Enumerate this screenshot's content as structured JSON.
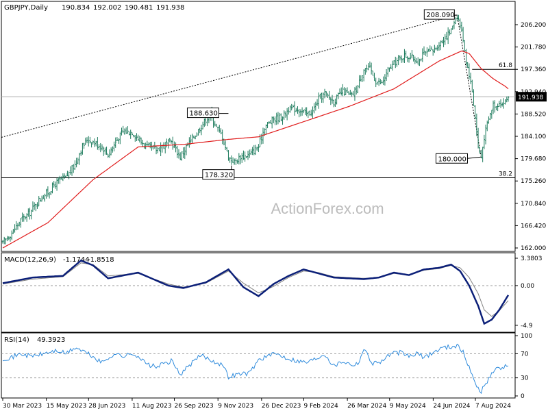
{
  "colors": {
    "background": "#ffffff",
    "candles": "#1b7a5b",
    "ma": "#e01b1b",
    "macd": "#0b1f78",
    "signal": "#808080",
    "rsi": "#2f8bdc",
    "grid_lines": "#000000"
  },
  "watermark": "ActionForex.com",
  "main_header": {
    "symbol": "GBPJPY,Daily",
    "open": "190.834",
    "high": "192.002",
    "low": "190.481",
    "close": "191.938"
  },
  "chart_data": [
    {
      "type": "candlestick",
      "title": "GBPJPY,Daily",
      "y_ticks": [
        "206.200",
        "201.780",
        "197.360",
        "192.940",
        "188.520",
        "184.100",
        "179.680",
        "175.260",
        "170.840",
        "166.420",
        "162.000"
      ],
      "ylim": [
        162.0,
        210.0
      ],
      "x_ticks": [
        "30 Mar 2023",
        "15 May 2023",
        "28 Jun 2023",
        "11 Aug 2023",
        "26 Sep 2023",
        "9 Nov 2023",
        "26 Dec 2023",
        "9 Feb 2024",
        "26 Mar 2024",
        "9 May 2024",
        "24 Jun 2024",
        "7 Aug 2024"
      ],
      "current_price_label": "191.938",
      "annotations": [
        {
          "text": "208.090",
          "value": 208.09
        },
        {
          "text": "188.630",
          "value": 188.63
        },
        {
          "text": "178.320",
          "value": 178.32
        },
        {
          "text": "180.000",
          "value": 180.0
        }
      ],
      "levels": [
        {
          "label": "61.8",
          "value": 197.36
        },
        {
          "label": "38.2",
          "value": 175.9
        },
        {
          "label": "",
          "value": 191.938
        }
      ],
      "series_close_path": [
        [
          0,
          163.0
        ],
        [
          6,
          165.0
        ],
        [
          12,
          167.5
        ],
        [
          18,
          169.0
        ],
        [
          24,
          171.5
        ],
        [
          30,
          173.0
        ],
        [
          36,
          175.0
        ],
        [
          42,
          176.0
        ],
        [
          48,
          178.5
        ],
        [
          52,
          181.5
        ],
        [
          56,
          183.5
        ],
        [
          60,
          183.0
        ],
        [
          66,
          182.0
        ],
        [
          70,
          180.5
        ],
        [
          76,
          183.5
        ],
        [
          80,
          185.0
        ],
        [
          86,
          185.0
        ],
        [
          92,
          183.0
        ],
        [
          96,
          182.0
        ],
        [
          102,
          181.5
        ],
        [
          108,
          182.5
        ],
        [
          112,
          183.0
        ],
        [
          118,
          180.0
        ],
        [
          122,
          182.0
        ],
        [
          128,
          184.5
        ],
        [
          134,
          187.0
        ],
        [
          138,
          188.5
        ],
        [
          142,
          186.0
        ],
        [
          146,
          184.0
        ],
        [
          150,
          180.0
        ],
        [
          154,
          179.0
        ],
        [
          158,
          180.0
        ],
        [
          164,
          180.5
        ],
        [
          170,
          182.0
        ],
        [
          174,
          186.0
        ],
        [
          180,
          187.5
        ],
        [
          186,
          188.0
        ],
        [
          190,
          189.5
        ],
        [
          196,
          189.5
        ],
        [
          202,
          188.5
        ],
        [
          206,
          189.0
        ],
        [
          210,
          191.5
        ],
        [
          214,
          192.5
        ],
        [
          220,
          191.0
        ],
        [
          226,
          193.0
        ],
        [
          232,
          192.0
        ],
        [
          236,
          194.0
        ],
        [
          240,
          197.5
        ],
        [
          244,
          197.5
        ],
        [
          248,
          195.0
        ],
        [
          252,
          194.5
        ],
        [
          256,
          197.0
        ],
        [
          260,
          198.5
        ],
        [
          266,
          200.0
        ],
        [
          270,
          200.0
        ],
        [
          276,
          199.0
        ],
        [
          280,
          200.5
        ],
        [
          286,
          201.0
        ],
        [
          292,
          203.0
        ],
        [
          298,
          205.0
        ],
        [
          300,
          207.0
        ],
        [
          302,
          208.09
        ],
        [
          304,
          206.0
        ],
        [
          306,
          203.5
        ],
        [
          308,
          199.0
        ],
        [
          310,
          196.5
        ],
        [
          312,
          193.0
        ],
        [
          314,
          188.0
        ],
        [
          316,
          182.0
        ],
        [
          318,
          180.0
        ],
        [
          320,
          184.0
        ],
        [
          322,
          186.5
        ],
        [
          324,
          188.5
        ],
        [
          326,
          190.5
        ],
        [
          328,
          190.0
        ],
        [
          330,
          191.0
        ],
        [
          332,
          190.5
        ],
        [
          334,
          191.0
        ],
        [
          336,
          191.938
        ]
      ],
      "ma_path": [
        [
          0,
          162.0
        ],
        [
          30,
          167.0
        ],
        [
          60,
          175.5
        ],
        [
          90,
          182.0
        ],
        [
          120,
          182.5
        ],
        [
          150,
          183.5
        ],
        [
          170,
          184.0
        ],
        [
          200,
          187.0
        ],
        [
          230,
          190.0
        ],
        [
          260,
          193.5
        ],
        [
          290,
          199.0
        ],
        [
          305,
          201.0
        ],
        [
          310,
          200.5
        ],
        [
          318,
          197.5
        ],
        [
          326,
          195.5
        ],
        [
          334,
          194.0
        ],
        [
          336,
          193.5
        ]
      ]
    },
    {
      "type": "line",
      "title": "MACD(12,26,9)",
      "header_values": [
        "-1.1744",
        "-1.8518"
      ],
      "y_ticks": [
        "3.3803",
        "0.00",
        "-4.9"
      ],
      "ylim": [
        -5.5,
        3.8
      ],
      "series": [
        {
          "name": "MACD",
          "points": [
            [
              0,
              0.3
            ],
            [
              20,
              1.0
            ],
            [
              40,
              1.2
            ],
            [
              52,
              3.1
            ],
            [
              60,
              2.5
            ],
            [
              70,
              0.9
            ],
            [
              90,
              1.6
            ],
            [
              110,
              0.0
            ],
            [
              120,
              -0.3
            ],
            [
              135,
              0.4
            ],
            [
              150,
              2.0
            ],
            [
              160,
              -0.2
            ],
            [
              170,
              -1.3
            ],
            [
              180,
              0.2
            ],
            [
              190,
              1.2
            ],
            [
              200,
              2.0
            ],
            [
              210,
              1.5
            ],
            [
              220,
              1.0
            ],
            [
              240,
              0.8
            ],
            [
              250,
              1.0
            ],
            [
              260,
              1.6
            ],
            [
              270,
              1.3
            ],
            [
              280,
              2.0
            ],
            [
              290,
              2.2
            ],
            [
              298,
              2.6
            ],
            [
              304,
              1.8
            ],
            [
              310,
              0.0
            ],
            [
              316,
              -2.5
            ],
            [
              320,
              -4.7
            ],
            [
              325,
              -4.2
            ],
            [
              330,
              -3.0
            ],
            [
              336,
              -1.17
            ]
          ]
        },
        {
          "name": "Signal",
          "points": [
            [
              0,
              0.2
            ],
            [
              20,
              0.8
            ],
            [
              40,
              1.1
            ],
            [
              52,
              2.8
            ],
            [
              60,
              2.6
            ],
            [
              70,
              1.2
            ],
            [
              90,
              1.5
            ],
            [
              110,
              0.2
            ],
            [
              120,
              -0.2
            ],
            [
              135,
              0.3
            ],
            [
              150,
              1.8
            ],
            [
              160,
              0.3
            ],
            [
              170,
              -0.9
            ],
            [
              180,
              -0.1
            ],
            [
              190,
              1.0
            ],
            [
              200,
              1.8
            ],
            [
              210,
              1.6
            ],
            [
              220,
              1.1
            ],
            [
              240,
              0.9
            ],
            [
              250,
              1.0
            ],
            [
              260,
              1.5
            ],
            [
              270,
              1.3
            ],
            [
              280,
              1.9
            ],
            [
              290,
              2.1
            ],
            [
              298,
              2.5
            ],
            [
              304,
              2.2
            ],
            [
              310,
              1.0
            ],
            [
              316,
              -1.0
            ],
            [
              320,
              -3.0
            ],
            [
              325,
              -3.8
            ],
            [
              330,
              -3.1
            ],
            [
              336,
              -1.85
            ]
          ]
        }
      ]
    },
    {
      "type": "line",
      "title": "RSI(14)",
      "header_value": "49.3923",
      "y_ticks": [
        "100",
        "70",
        "30",
        "0"
      ],
      "ylim": [
        0,
        100
      ],
      "series": [
        {
          "name": "RSI",
          "points": [
            [
              0,
              62
            ],
            [
              6,
              64
            ],
            [
              12,
              70
            ],
            [
              18,
              66
            ],
            [
              24,
              68
            ],
            [
              30,
              72
            ],
            [
              36,
              75
            ],
            [
              42,
              70
            ],
            [
              48,
              80
            ],
            [
              52,
              76
            ],
            [
              58,
              68
            ],
            [
              66,
              55
            ],
            [
              74,
              70
            ],
            [
              80,
              66
            ],
            [
              88,
              70
            ],
            [
              96,
              52
            ],
            [
              102,
              48
            ],
            [
              112,
              58
            ],
            [
              118,
              36
            ],
            [
              126,
              55
            ],
            [
              132,
              68
            ],
            [
              138,
              60
            ],
            [
              146,
              52
            ],
            [
              150,
              32
            ],
            [
              156,
              36
            ],
            [
              164,
              38
            ],
            [
              170,
              60
            ],
            [
              176,
              66
            ],
            [
              182,
              70
            ],
            [
              188,
              64
            ],
            [
              196,
              58
            ],
            [
              202,
              56
            ],
            [
              208,
              62
            ],
            [
              214,
              70
            ],
            [
              220,
              50
            ],
            [
              226,
              58
            ],
            [
              232,
              52
            ],
            [
              236,
              54
            ],
            [
              240,
              78
            ],
            [
              246,
              54
            ],
            [
              252,
              58
            ],
            [
              258,
              70
            ],
            [
              264,
              72
            ],
            [
              270,
              66
            ],
            [
              276,
              70
            ],
            [
              280,
              64
            ],
            [
              286,
              72
            ],
            [
              292,
              80
            ],
            [
              298,
              82
            ],
            [
              302,
              84
            ],
            [
              306,
              72
            ],
            [
              310,
              48
            ],
            [
              314,
              20
            ],
            [
              318,
              8
            ],
            [
              322,
              24
            ],
            [
              326,
              42
            ],
            [
              330,
              46
            ],
            [
              336,
              49.39
            ]
          ]
        }
      ],
      "levels": [
        70,
        30
      ]
    }
  ]
}
